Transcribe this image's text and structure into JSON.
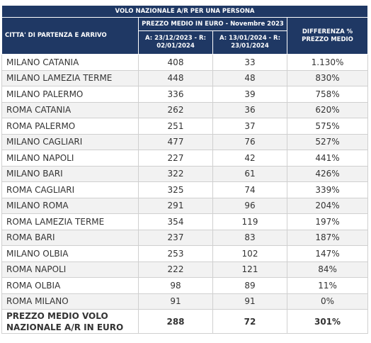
{
  "table": {
    "title": "VOLO NAZIONALE A/R PER UNA PERSONA",
    "header": {
      "route": "CITTA' DI PARTENZA E ARRIVO",
      "price_group": "PREZZO MEDIO IN EURO - Novembre 2023",
      "period_1": "A: 23/12/2023 - R: 02/01/2024",
      "period_2": "A: 13/01/2024 - R: 23/01/2024",
      "difference": "DIFFERENZA % PREZZO MEDIO"
    },
    "rows": [
      [
        "MILANO CATANIA",
        "408",
        "33",
        "1.130%"
      ],
      [
        "MILANO LAMEZIA TERME",
        "448",
        "48",
        "830%"
      ],
      [
        "MILANO PALERMO",
        "336",
        "39",
        "758%"
      ],
      [
        "ROMA CATANIA",
        "262",
        "36",
        "620%"
      ],
      [
        "ROMA PALERMO",
        "251",
        "37",
        "575%"
      ],
      [
        "MILANO CAGLIARI",
        "477",
        "76",
        "527%"
      ],
      [
        "MILANO NAPOLI",
        "227",
        "42",
        "441%"
      ],
      [
        "MILANO BARI",
        "322",
        "61",
        "426%"
      ],
      [
        "ROMA CAGLIARI",
        "325",
        "74",
        "339%"
      ],
      [
        "MILANO ROMA",
        "291",
        "96",
        "204%"
      ],
      [
        "ROMA LAMEZIA TERME",
        "354",
        "119",
        "197%"
      ],
      [
        "ROMA BARI",
        "237",
        "83",
        "187%"
      ],
      [
        "MILANO OLBIA",
        "253",
        "102",
        "147%"
      ],
      [
        "ROMA NAPOLI",
        "222",
        "121",
        "84%"
      ],
      [
        "ROMA OLBIA",
        "98",
        "89",
        "11%"
      ],
      [
        "ROMA MILANO",
        "91",
        "91",
        "0%"
      ]
    ],
    "total": [
      "PREZZO MEDIO VOLO NAZIONALE A/R IN EURO",
      "288",
      "72",
      "301%"
    ]
  }
}
